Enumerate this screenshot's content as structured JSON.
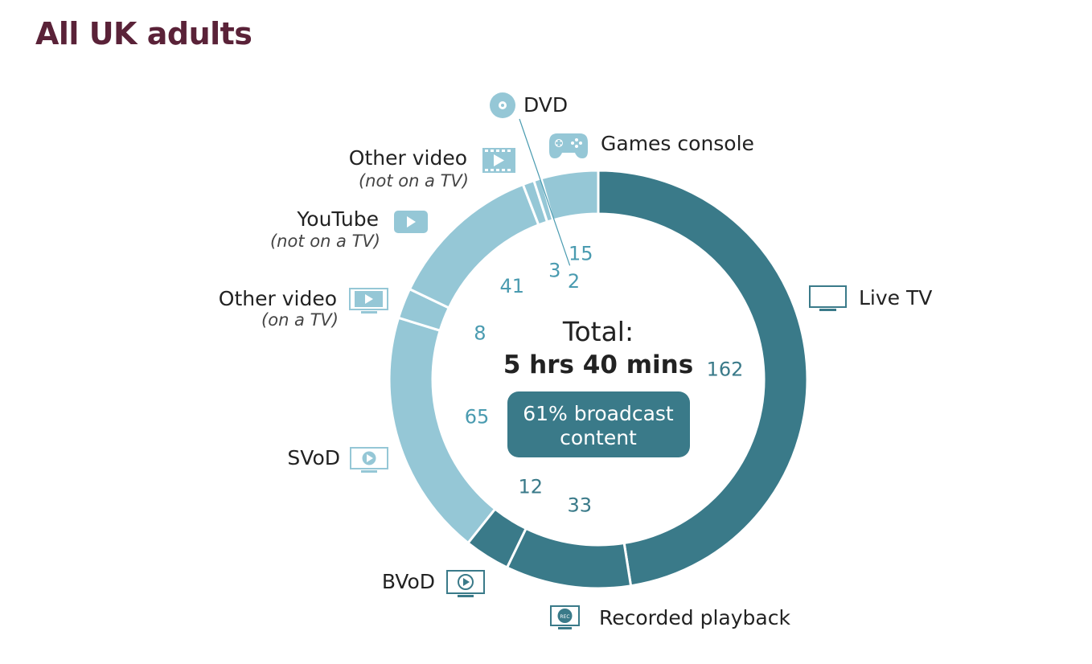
{
  "title": "All UK adults",
  "chart_data": {
    "type": "pie",
    "donut": true,
    "center": {
      "total_label": "Total:",
      "total_value": "5 hrs 40 mins",
      "badge_line1": "61% broadcast",
      "badge_line2": "content"
    },
    "segments": [
      {
        "name": "Live TV",
        "sublabel": "",
        "value": 162,
        "color": "#3a7a89",
        "label_color": "#3a7a89",
        "icon": "tv-icon"
      },
      {
        "name": "Recorded playback",
        "sublabel": "",
        "value": 33,
        "color": "#3a7a89",
        "label_color": "#3a7a89",
        "icon": "rec-tv-icon"
      },
      {
        "name": "BVoD",
        "sublabel": "",
        "value": 12,
        "color": "#3a7a89",
        "label_color": "#3a7a89",
        "icon": "bvod-tv-icon"
      },
      {
        "name": "SVoD",
        "sublabel": "",
        "value": 65,
        "color": "#95c7d6",
        "label_color": "#4a9bb0",
        "icon": "svod-tv-icon"
      },
      {
        "name": "Other video",
        "sublabel": "(on a TV)",
        "value": 8,
        "color": "#95c7d6",
        "label_color": "#4a9bb0",
        "icon": "film-tv-icon"
      },
      {
        "name": "YouTube",
        "sublabel": "(not on a TV)",
        "value": 41,
        "color": "#95c7d6",
        "label_color": "#4a9bb0",
        "icon": "youtube-icon"
      },
      {
        "name": "Other video",
        "sublabel": "(not on a TV)",
        "value": 3,
        "color": "#95c7d6",
        "label_color": "#4a9bb0",
        "icon": "film-icon"
      },
      {
        "name": "DVD",
        "sublabel": "",
        "value": 2,
        "color": "#95c7d6",
        "label_color": "#4a9bb0",
        "icon": "dvd-icon"
      },
      {
        "name": "Games console",
        "sublabel": "",
        "value": 15,
        "color": "#95c7d6",
        "label_color": "#4a9bb0",
        "icon": "gamepad-icon"
      }
    ]
  }
}
